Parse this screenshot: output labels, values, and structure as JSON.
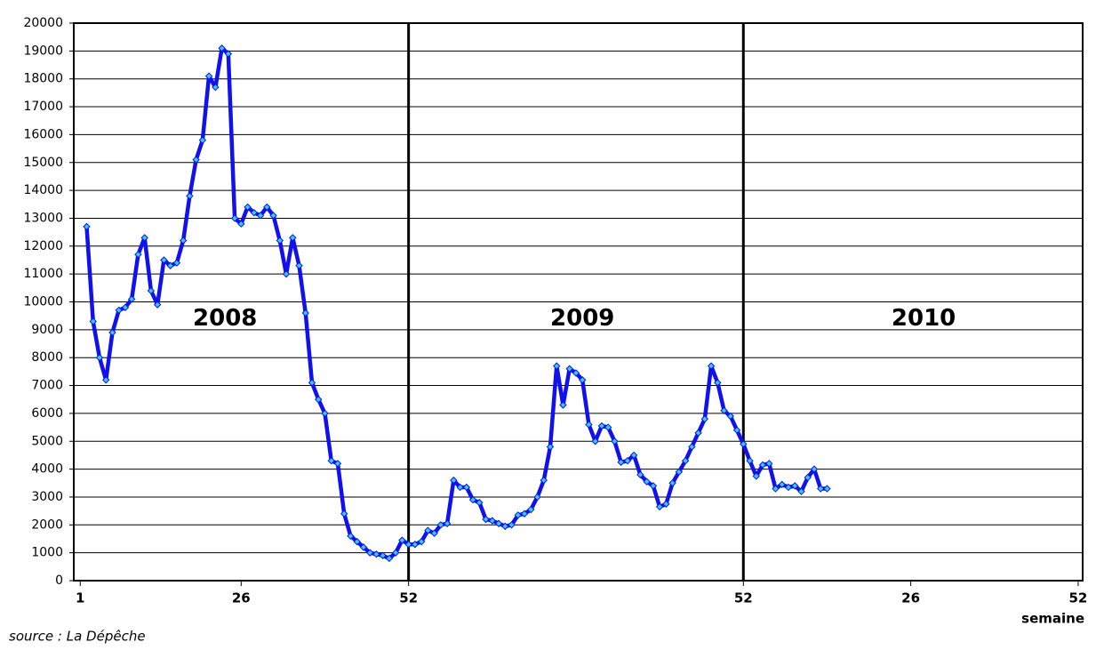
{
  "chart_data": {
    "type": "line",
    "x": [
      2,
      3,
      4,
      5,
      6,
      7,
      8,
      9,
      10,
      11,
      12,
      13,
      14,
      15,
      16,
      17,
      18,
      19,
      20,
      21,
      22,
      23,
      24,
      25,
      26,
      27,
      28,
      29,
      30,
      31,
      32,
      33,
      34,
      35,
      36,
      37,
      38,
      39,
      40,
      41,
      42,
      43,
      44,
      45,
      46,
      47,
      48,
      49,
      50,
      51,
      52,
      53,
      54,
      55,
      56,
      57,
      58,
      59,
      60,
      61,
      62,
      63,
      64,
      65,
      66,
      67,
      68,
      69,
      70,
      71,
      72,
      73,
      74,
      75,
      76,
      77,
      78,
      79,
      80,
      81,
      82,
      83,
      84,
      85,
      86,
      87,
      88,
      89,
      90,
      91,
      92,
      93,
      94,
      95,
      96,
      97,
      98,
      99,
      100,
      101,
      102,
      103,
      104,
      105,
      106,
      107,
      108,
      109,
      110,
      111,
      112,
      113,
      114,
      115,
      116,
      117
    ],
    "values": [
      12700,
      9300,
      8000,
      7200,
      8900,
      9700,
      9800,
      10100,
      11700,
      12300,
      10400,
      9900,
      11500,
      11300,
      11400,
      12200,
      13800,
      15100,
      15800,
      18100,
      17700,
      19100,
      18900,
      13000,
      12800,
      13400,
      13200,
      13100,
      13400,
      13100,
      12200,
      11000,
      12300,
      11300,
      9600,
      7100,
      6500,
      6000,
      4300,
      4200,
      2400,
      1600,
      1400,
      1200,
      1000,
      950,
      900,
      800,
      1000,
      1450,
      1300,
      1300,
      1400,
      1800,
      1700,
      2000,
      2050,
      3600,
      3350,
      3350,
      2900,
      2800,
      2200,
      2150,
      2050,
      1950,
      2000,
      2350,
      2400,
      2550,
      3000,
      3600,
      4800,
      7700,
      6300,
      7600,
      7450,
      7200,
      5600,
      5000,
      5550,
      5500,
      5000,
      4250,
      4300,
      4500,
      3800,
      3550,
      3400,
      2650,
      2750,
      3500,
      3900,
      4300,
      4800,
      5300,
      5800,
      7700,
      7100,
      6100,
      5900,
      5400,
      4900,
      4300,
      3750,
      4150,
      4200,
      3300,
      3450,
      3350,
      3400,
      3200,
      3700,
      4000,
      3300,
      3300
    ],
    "color": "#1010f0",
    "marker_color": "#33ccff",
    "xlim": [
      0,
      156.7
    ],
    "xticks": [
      1,
      26,
      52,
      {
        "value": 104,
        "label": "52"
      },
      {
        "value": 130,
        "label": "26"
      },
      {
        "value": 156,
        "label": "52"
      }
    ],
    "ylim": [
      0,
      20000
    ],
    "yticks": [
      0,
      1000,
      2000,
      3000,
      4000,
      5000,
      6000,
      7000,
      8000,
      9000,
      10000,
      11000,
      12000,
      13000,
      14000,
      15000,
      16000,
      17000,
      18000,
      19000,
      20000
    ],
    "grid": true,
    "vlines": [
      52,
      104
    ],
    "x_label": "semaine",
    "annotations": [
      {
        "text": "2008",
        "x": 23.5,
        "y": 9400
      },
      {
        "text": "2009",
        "x": 79,
        "y": 9400
      },
      {
        "text": "2010",
        "x": 132,
        "y": 9400
      }
    ],
    "source": "source : La Dépêche"
  }
}
